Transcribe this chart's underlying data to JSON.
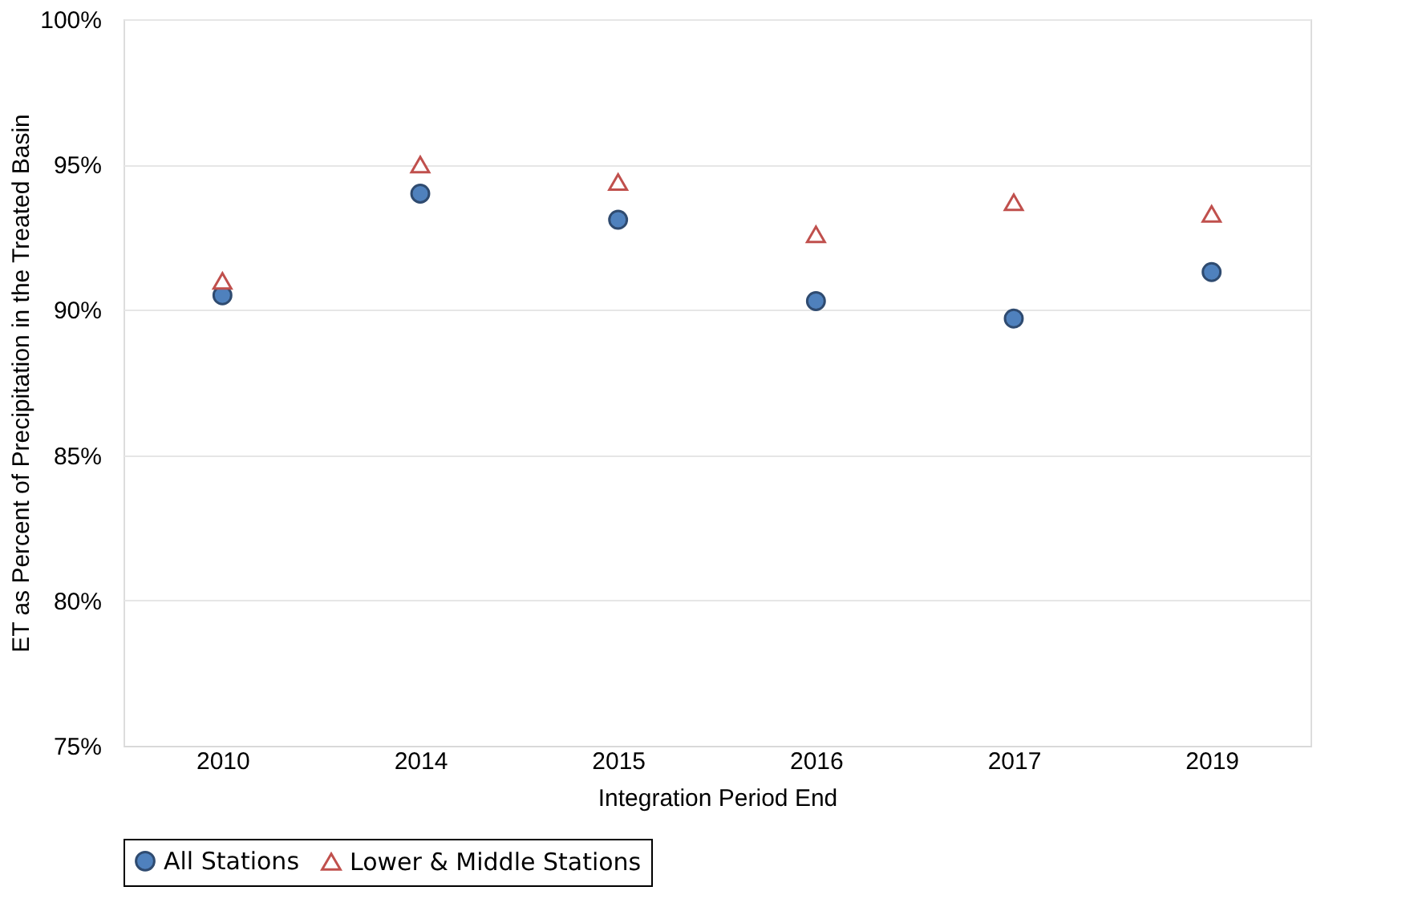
{
  "chart_data": {
    "type": "scatter",
    "xlabel": "Integration Period End",
    "ylabel": "ET as Percent of Precipitation in the Treated Basin",
    "categories": [
      "2010",
      "2014",
      "2015",
      "2016",
      "2017",
      "2019"
    ],
    "series": [
      {
        "name": "All Stations",
        "color": "#4f81bd",
        "marker": "circle",
        "values": [
          90.5,
          94.0,
          93.1,
          90.3,
          89.7,
          91.3
        ]
      },
      {
        "name": "Lower & Middle Stations",
        "color": "#c0504d",
        "marker": "triangle",
        "values": [
          91.0,
          95.0,
          94.4,
          92.6,
          93.7,
          93.3
        ]
      }
    ],
    "ylim": [
      75,
      100
    ],
    "yticks": [
      {
        "value": 75,
        "label": "75%"
      },
      {
        "value": 80,
        "label": "80%"
      },
      {
        "value": 85,
        "label": "85%"
      },
      {
        "value": 90,
        "label": "90%"
      },
      {
        "value": 95,
        "label": "95%"
      },
      {
        "value": 100,
        "label": "100%"
      }
    ],
    "grid": "y",
    "legend": "bottom"
  }
}
